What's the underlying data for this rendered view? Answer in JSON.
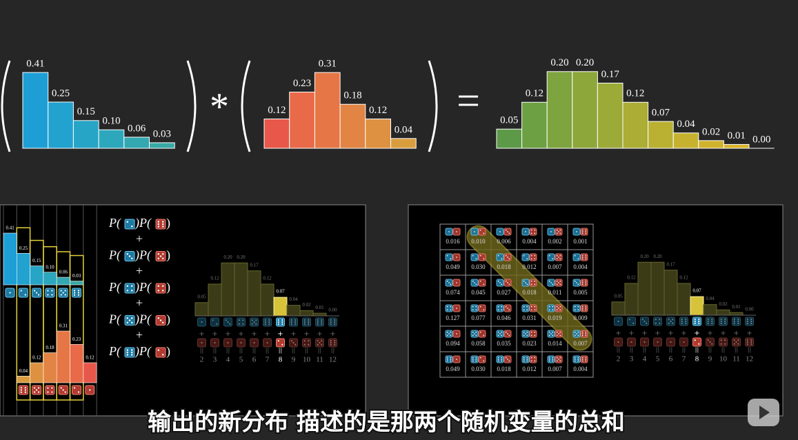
{
  "chart_data": [
    {
      "type": "bar",
      "values": [
        0.41,
        0.25,
        0.15,
        0.1,
        0.06,
        0.03
      ],
      "value_labels": [
        "0.41",
        "0.25",
        "0.15",
        "0.10",
        "0.06",
        "0.03"
      ],
      "colors": [
        "#1d9fd6",
        "#22a2cf",
        "#27a5c6",
        "#2da7bc",
        "#33a8b1",
        "#38a9a6"
      ],
      "ylim": [
        0,
        0.5
      ]
    },
    {
      "type": "bar",
      "values": [
        0.12,
        0.23,
        0.31,
        0.18,
        0.12,
        0.04
      ],
      "value_labels": [
        "0.12",
        "0.23",
        "0.31",
        "0.18",
        "0.12",
        "0.04"
      ],
      "colors": [
        "#e8584a",
        "#e96a48",
        "#e67645",
        "#e28443",
        "#de9140",
        "#d99d3d"
      ],
      "ylim": [
        0,
        0.35
      ]
    },
    {
      "type": "bar",
      "values": [
        0.05,
        0.12,
        0.2,
        0.2,
        0.17,
        0.12,
        0.07,
        0.04,
        0.02,
        0.01,
        0
      ],
      "value_labels": [
        "0.05",
        "0.12",
        "0.20",
        "0.20",
        "0.17",
        "0.12",
        "0.07",
        "0.04",
        "0.02",
        "0.01",
        "0.00"
      ],
      "colors": [
        "#5c9a48",
        "#6ca043",
        "#7ea43f",
        "#8da73b",
        "#9caa38",
        "#abad35",
        "#bab032",
        "#c6b22f",
        "#d0b32c",
        "#d8b42a",
        "#dfb528"
      ],
      "ylim": [
        0,
        0.25
      ]
    },
    {
      "type": "bar",
      "categories": [
        "2",
        "3",
        "4",
        "5",
        "6",
        "7",
        "8",
        "9",
        "10",
        "11",
        "12"
      ],
      "values": [
        0.05,
        0.12,
        0.2,
        0.2,
        0.17,
        0.12,
        0.07,
        0.04,
        0.02,
        0.01,
        0
      ],
      "value_labels": [
        "0.05",
        "0.12",
        "0.20",
        "0.20",
        "0.17",
        "0.12",
        "0.07",
        "0.04",
        "0.02",
        "0.01",
        "0.00"
      ],
      "color": "#3b3b18",
      "highlight_color": "#d6c33a",
      "highlight": 6,
      "ylim": [
        0,
        0.25
      ]
    }
  ],
  "operators": [
    "*",
    "="
  ],
  "formula": {
    "terms": [
      [
        "P(",
        ")P(",
        ")"
      ],
      [
        "P(",
        ")P(",
        ")"
      ],
      [
        "P(",
        ")P(",
        ")"
      ],
      [
        "P(",
        ")P(",
        ")"
      ],
      [
        "P(",
        ")P(",
        ")"
      ]
    ],
    "plus": [
      "+",
      "+",
      "+",
      "+"
    ]
  },
  "sum_symbols": [
    "+",
    "||"
  ],
  "table": {
    "rows": [
      [
        "0.016",
        "0.010",
        "0.006",
        "0.004",
        "0.002",
        "0.001"
      ],
      [
        "0.049",
        "0.030",
        "0.018",
        "0.012",
        "0.007",
        "0.004"
      ],
      [
        "0.074",
        "0.045",
        "0.027",
        "0.018",
        "0.011",
        "0.005"
      ],
      [
        "0.127",
        "0.077",
        "0.046",
        "0.031",
        "0.019",
        "0.009"
      ],
      [
        "0.094",
        "0.058",
        "0.035",
        "0.023",
        "0.014",
        "0.007"
      ],
      [
        "0.049",
        "0.030",
        "0.018",
        "0.012",
        "0.007",
        "0.004"
      ]
    ]
  },
  "subtitle": "输出的新分布  描述的是那两个随机变量的总和"
}
